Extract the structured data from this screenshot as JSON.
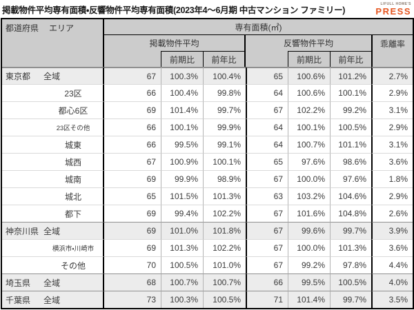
{
  "title": "掲載物件平均専有面積・反響物件平均専有面積(2023年4〜6月期 中古マンション ファミリー)",
  "logo": {
    "brand": "LIFULL HOME'S",
    "name": "PRESS",
    "accent_color": "#e5541e"
  },
  "table": {
    "corner": {
      "prefecture_label": "都道府県",
      "area_label": "エリア"
    },
    "unit_header": "専有面積(㎡)",
    "group_headers": [
      "掲載物件平均",
      "反響物件平均"
    ],
    "sub_headers": [
      "前期比",
      "前年比"
    ],
    "deviation_header": "乖離率",
    "rows": [
      {
        "prefecture": "東京都",
        "area": "全域",
        "level": "prefecture",
        "group_start": true,
        "listed_avg": "67",
        "listed_qoq": "100.3%",
        "listed_yoy": "100.4%",
        "response_avg": "65",
        "response_qoq": "100.6%",
        "response_yoy": "101.2%",
        "deviation_rate": "2.7%"
      },
      {
        "prefecture": "",
        "area": "23区",
        "level": "sub",
        "group_start": false,
        "listed_avg": "66",
        "listed_qoq": "100.4%",
        "listed_yoy": "99.8%",
        "response_avg": "64",
        "response_qoq": "100.6%",
        "response_yoy": "100.1%",
        "deviation_rate": "2.9%"
      },
      {
        "prefecture": "",
        "area": "都心6区",
        "level": "sub",
        "group_start": false,
        "listed_avg": "69",
        "listed_qoq": "101.4%",
        "listed_yoy": "99.7%",
        "response_avg": "67",
        "response_qoq": "102.2%",
        "response_yoy": "99.2%",
        "deviation_rate": "3.1%"
      },
      {
        "prefecture": "",
        "area": "23区その他",
        "level": "sub",
        "group_start": false,
        "listed_avg": "66",
        "listed_qoq": "100.1%",
        "listed_yoy": "99.9%",
        "response_avg": "64",
        "response_qoq": "100.1%",
        "response_yoy": "100.5%",
        "deviation_rate": "2.9%"
      },
      {
        "prefecture": "",
        "area": "城東",
        "level": "sub",
        "group_start": false,
        "listed_avg": "66",
        "listed_qoq": "99.5%",
        "listed_yoy": "99.1%",
        "response_avg": "64",
        "response_qoq": "100.7%",
        "response_yoy": "101.1%",
        "deviation_rate": "3.1%"
      },
      {
        "prefecture": "",
        "area": "城西",
        "level": "sub",
        "group_start": false,
        "listed_avg": "67",
        "listed_qoq": "100.9%",
        "listed_yoy": "100.1%",
        "response_avg": "65",
        "response_qoq": "97.6%",
        "response_yoy": "98.6%",
        "deviation_rate": "3.6%"
      },
      {
        "prefecture": "",
        "area": "城南",
        "level": "sub",
        "group_start": false,
        "listed_avg": "69",
        "listed_qoq": "99.9%",
        "listed_yoy": "98.9%",
        "response_avg": "67",
        "response_qoq": "100.0%",
        "response_yoy": "97.6%",
        "deviation_rate": "1.8%"
      },
      {
        "prefecture": "",
        "area": "城北",
        "level": "sub",
        "group_start": false,
        "listed_avg": "65",
        "listed_qoq": "101.5%",
        "listed_yoy": "101.3%",
        "response_avg": "63",
        "response_qoq": "103.2%",
        "response_yoy": "104.6%",
        "deviation_rate": "2.9%"
      },
      {
        "prefecture": "",
        "area": "都下",
        "level": "sub",
        "group_start": false,
        "listed_avg": "69",
        "listed_qoq": "99.4%",
        "listed_yoy": "102.2%",
        "response_avg": "67",
        "response_qoq": "101.6%",
        "response_yoy": "104.8%",
        "deviation_rate": "2.6%"
      },
      {
        "prefecture": "神奈川県",
        "area": "全域",
        "level": "prefecture",
        "group_start": true,
        "listed_avg": "69",
        "listed_qoq": "101.0%",
        "listed_yoy": "101.8%",
        "response_avg": "67",
        "response_qoq": "99.6%",
        "response_yoy": "99.7%",
        "deviation_rate": "3.9%"
      },
      {
        "prefecture": "",
        "area": "横浜市・川崎市",
        "level": "sub",
        "group_start": false,
        "listed_avg": "69",
        "listed_qoq": "101.3%",
        "listed_yoy": "102.2%",
        "response_avg": "67",
        "response_qoq": "100.0%",
        "response_yoy": "101.3%",
        "deviation_rate": "3.6%"
      },
      {
        "prefecture": "",
        "area": "その他",
        "level": "sub",
        "group_start": false,
        "listed_avg": "70",
        "listed_qoq": "100.5%",
        "listed_yoy": "101.0%",
        "response_avg": "67",
        "response_qoq": "99.2%",
        "response_yoy": "97.8%",
        "deviation_rate": "4.4%"
      },
      {
        "prefecture": "埼玉県",
        "area": "全域",
        "level": "prefecture",
        "group_start": true,
        "listed_avg": "68",
        "listed_qoq": "100.7%",
        "listed_yoy": "100.7%",
        "response_avg": "66",
        "response_qoq": "99.5%",
        "response_yoy": "100.5%",
        "deviation_rate": "4.0%"
      },
      {
        "prefecture": "千葉県",
        "area": "全域",
        "level": "prefecture",
        "group_start": true,
        "listed_avg": "73",
        "listed_qoq": "100.3%",
        "listed_yoy": "100.5%",
        "response_avg": "71",
        "response_qoq": "101.4%",
        "response_yoy": "99.7%",
        "deviation_rate": "3.5%"
      }
    ]
  },
  "colors": {
    "header_bg": "#cccccc",
    "prefecture_row_bg": "#ececec",
    "grid_line": "#b3b3b3",
    "border": "#000000"
  },
  "chart_data": {
    "type": "table",
    "title": "掲載物件平均専有面積・反響物件平均専有面積(2023年4〜6月期 中古マンション ファミリー)",
    "unit": "専有面積(㎡)",
    "columns": [
      "都道府県",
      "エリア",
      "掲載物件平均",
      "掲載物件平均 前期比",
      "掲載物件平均 前年比",
      "反響物件平均",
      "反響物件平均 前期比",
      "反響物件平均 前年比",
      "乖離率"
    ],
    "rows": [
      [
        "東京都",
        "全域",
        67,
        "100.3%",
        "100.4%",
        65,
        "100.6%",
        "101.2%",
        "2.7%"
      ],
      [
        "",
        "23区",
        66,
        "100.4%",
        "99.8%",
        64,
        "100.6%",
        "100.1%",
        "2.9%"
      ],
      [
        "",
        "都心6区",
        69,
        "101.4%",
        "99.7%",
        67,
        "102.2%",
        "99.2%",
        "3.1%"
      ],
      [
        "",
        "23区その他",
        66,
        "100.1%",
        "99.9%",
        64,
        "100.1%",
        "100.5%",
        "2.9%"
      ],
      [
        "",
        "城東",
        66,
        "99.5%",
        "99.1%",
        64,
        "100.7%",
        "101.1%",
        "3.1%"
      ],
      [
        "",
        "城西",
        67,
        "100.9%",
        "100.1%",
        65,
        "97.6%",
        "98.6%",
        "3.6%"
      ],
      [
        "",
        "城南",
        69,
        "99.9%",
        "98.9%",
        67,
        "100.0%",
        "97.6%",
        "1.8%"
      ],
      [
        "",
        "城北",
        65,
        "101.5%",
        "101.3%",
        63,
        "103.2%",
        "104.6%",
        "2.9%"
      ],
      [
        "",
        "都下",
        69,
        "99.4%",
        "102.2%",
        67,
        "101.6%",
        "104.8%",
        "2.6%"
      ],
      [
        "神奈川県",
        "全域",
        69,
        "101.0%",
        "101.8%",
        67,
        "99.6%",
        "99.7%",
        "3.9%"
      ],
      [
        "",
        "横浜市・川崎市",
        69,
        "101.3%",
        "102.2%",
        67,
        "100.0%",
        "101.3%",
        "3.6%"
      ],
      [
        "",
        "その他",
        70,
        "100.5%",
        "101.0%",
        67,
        "99.2%",
        "97.8%",
        "4.4%"
      ],
      [
        "埼玉県",
        "全域",
        68,
        "100.7%",
        "100.7%",
        66,
        "99.5%",
        "100.5%",
        "4.0%"
      ],
      [
        "千葉県",
        "全域",
        73,
        "100.3%",
        "100.5%",
        71,
        "101.4%",
        "99.7%",
        "3.5%"
      ]
    ]
  }
}
